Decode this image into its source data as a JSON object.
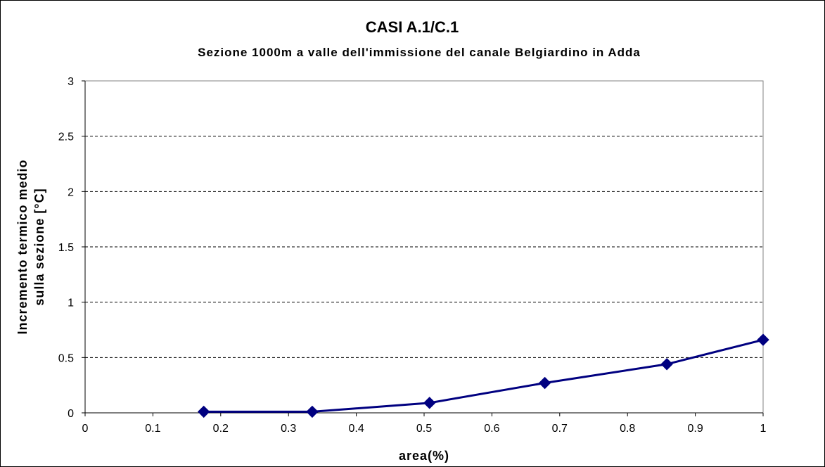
{
  "chart_data": {
    "type": "line",
    "title": "CASI A.1/C.1",
    "subtitle": "Sezione 1000m a valle dell'immissione del canale Belgiardino in Adda",
    "xlabel": "area(%)",
    "ylabel_line1": "Incremento termico medio",
    "ylabel_line2": "sulla sezione [°C]",
    "xlim": [
      0,
      1
    ],
    "ylim": [
      0,
      3
    ],
    "x_ticks": [
      "0",
      "0.1",
      "0.2",
      "0.3",
      "0.4",
      "0.5",
      "0.6",
      "0.7",
      "0.8",
      "0.9",
      "1"
    ],
    "y_ticks": [
      "0",
      "0.5",
      "1",
      "1.5",
      "2",
      "2.5",
      "3"
    ],
    "grid": "horizontal dashed",
    "legend": "none",
    "series": [
      {
        "color": "#000080",
        "marker": "diamond",
        "x": [
          0.175,
          0.335,
          0.508,
          0.678,
          0.858,
          1.0
        ],
        "y": [
          0.01,
          0.01,
          0.09,
          0.27,
          0.44,
          0.66
        ]
      }
    ]
  }
}
